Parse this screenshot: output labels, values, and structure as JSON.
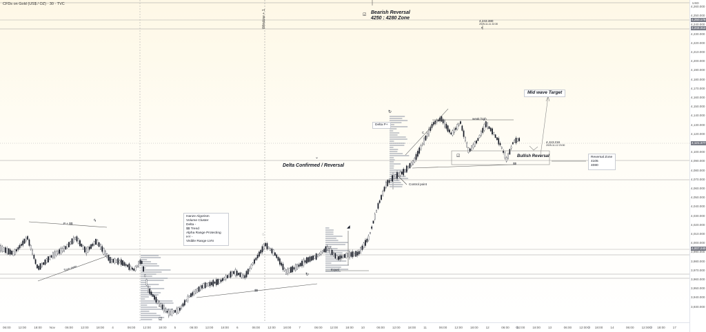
{
  "symbol": {
    "title": "CFDs on Gold (US$ / OZ) · 30 · TVC"
  },
  "currency": "USD",
  "price_axis": {
    "ticks": [
      "4,260.000",
      "4,250.000",
      "4,240.000",
      "4,230.000",
      "4,220.000",
      "4,210.000",
      "4,200.000",
      "4,190.000",
      "4,180.000",
      "4,170.000",
      "4,160.000",
      "4,150.000",
      "4,140.000",
      "4,130.000",
      "4,120.000",
      "4,110.000",
      "4,100.000",
      "4,090.000",
      "4,080.000",
      "4,070.000",
      "4,060.000",
      "4,050.000",
      "4,040.000",
      "4,030.000",
      "4,020.000",
      "4,010.000",
      "4,000.000",
      "3,990.000",
      "3,980.000",
      "3,970.000",
      "3,960.000",
      "3,950.000",
      "3,940.000",
      "3,930.000"
    ],
    "tags": [
      {
        "text": "4,250.178",
        "color": "#787b86"
      },
      {
        "text": "4,244.312",
        "color": "#787b86"
      },
      {
        "text": "4,121.377",
        "color": "#787b86"
      },
      {
        "text": "4,007.240",
        "color": "#787b86"
      }
    ]
  },
  "time_axis": {
    "labels": [
      "06:00",
      "12:00",
      "18:00",
      "Nov",
      "06:00",
      "12:00",
      "18:00",
      "4",
      "06:00",
      "12:00",
      "18:00",
      "5",
      "06:00",
      "12:00",
      "18:00",
      "6",
      "06:00",
      "12:00",
      "18:00",
      "7",
      "06:00",
      "12:00",
      "18:00",
      "10",
      "06:00",
      "12:00",
      "18:00",
      "11",
      "06:00",
      "12:00",
      "18:00",
      "12",
      "06:00",
      "12:00",
      "18:00",
      "13",
      "06:00",
      "12:00",
      "18:00",
      "14",
      "06:00",
      "12:00",
      "18:00",
      "17"
    ]
  },
  "window_label": "Window + 1",
  "annotations": {
    "bearish_reversal": "Bearish Reversal",
    "bearish_zone": "4250 : 4280 Zone",
    "delta_confirmed": "Delta Confirmed / Reversal",
    "mid_wave_target": "Mid wave Target",
    "bullish_reversal": "Bullish Reversal",
    "weak_high": "weak high",
    "control_point": "Control point",
    "equal": "Equal",
    "turn_over": "Turn over",
    "p_ss": "P + $$",
    "ss_low": "$$",
    "ss_right": "$$",
    "c_label": "C",
    "delta_p": "Delta P+"
  },
  "price_labels": {
    "top_price": "4,243.380",
    "top_date": "2025-11-11 22:30",
    "mid_price": "4,113.216",
    "mid_date": "2025-11-12 23:30"
  },
  "reversal_zone": {
    "title": "Reversal Zone",
    "line1": "4105",
    "line2": "4080"
  },
  "notes_box": {
    "lines": [
      "Hanze Algorism",
      "Volume Cluster",
      "Delta -",
      "$$ Trend",
      "Alpha Range Protecting",
      "HY -",
      "Visible Range LVN"
    ]
  },
  "colors": {
    "candle": "#131722",
    "grid": "#d9d9d9",
    "volume_profile": "#b2b5be",
    "background_top": "#fef8e6"
  }
}
